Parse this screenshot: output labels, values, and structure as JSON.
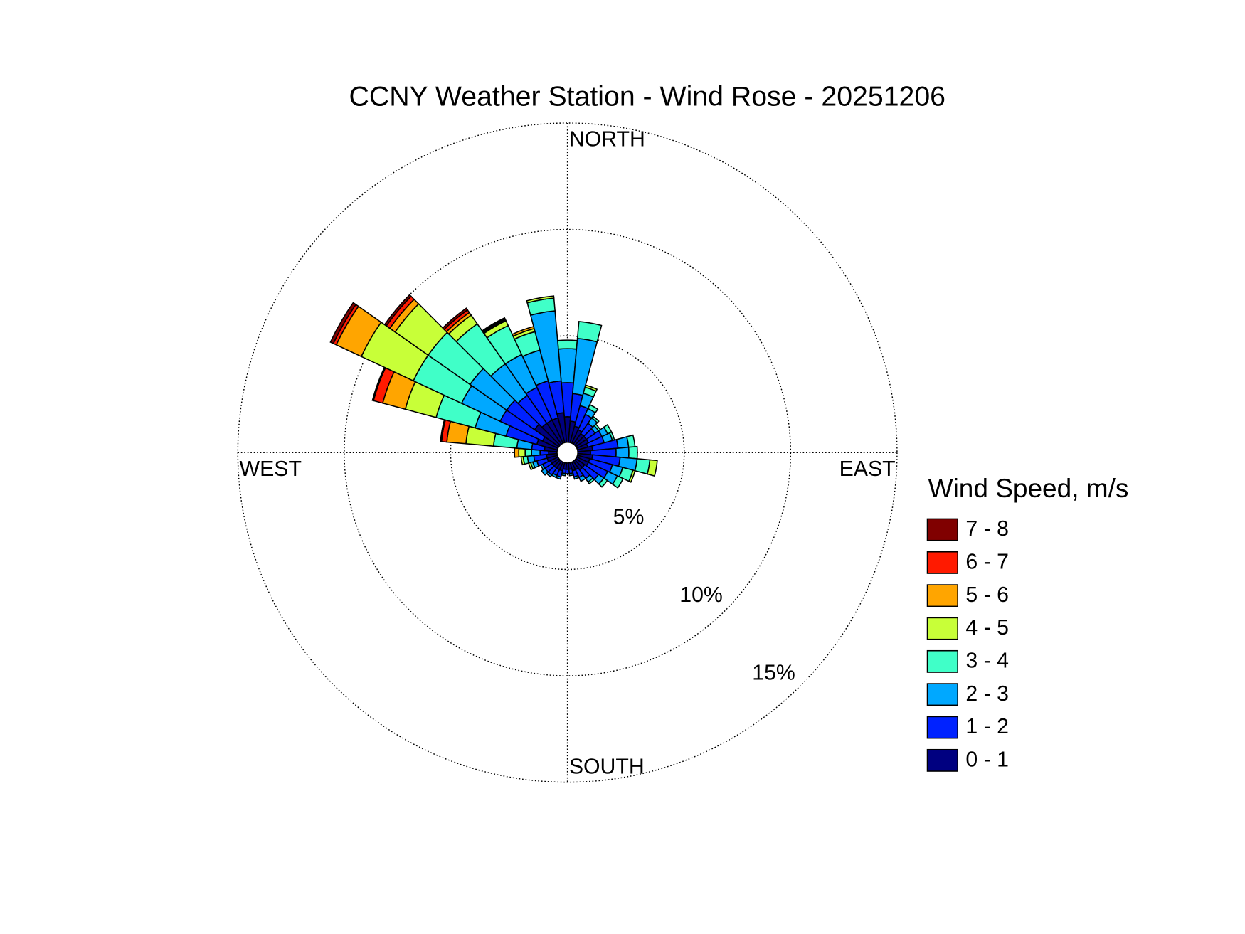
{
  "chart_data": {
    "type": "windrose",
    "title": "CCNY Weather Station - Wind Rose - 20251206",
    "legend_title": "Wind Speed, m/s",
    "compass_labels": [
      "NORTH",
      "EAST",
      "SOUTH",
      "WEST"
    ],
    "x": [
      0,
      10,
      20,
      30,
      40,
      50,
      60,
      70,
      80,
      90,
      100,
      110,
      120,
      130,
      140,
      150,
      160,
      170,
      180,
      190,
      200,
      210,
      220,
      230,
      240,
      250,
      260,
      270,
      280,
      290,
      300,
      310,
      320,
      330,
      340,
      350
    ],
    "rlim": [
      0,
      15
    ],
    "rticks": [
      {
        "value": 5,
        "label": "5%"
      },
      {
        "value": 10,
        "label": "10%"
      },
      {
        "value": 15,
        "label": "15%"
      }
    ],
    "grid": true,
    "legend": "right",
    "series": [
      {
        "name": "0 - 1",
        "color": "#000080",
        "values": [
          1.2,
          1.0,
          0.8,
          0.7,
          0.6,
          0.6,
          0.6,
          0.5,
          0.7,
          0.6,
          0.7,
          0.6,
          0.6,
          0.5,
          0.5,
          0.4,
          0.4,
          0.3,
          0.3,
          0.3,
          0.4,
          0.4,
          0.4,
          0.4,
          0.4,
          0.5,
          0.5,
          0.4,
          0.6,
          1.0,
          0.8,
          1.4,
          1.2,
          1.2,
          1.2,
          1.4
        ]
      },
      {
        "name": "1 - 2",
        "color": "#0022ff",
        "values": [
          1.6,
          1.3,
          1.0,
          0.8,
          0.6,
          0.5,
          0.7,
          0.8,
          1.2,
          1.2,
          1.3,
          1.1,
          1.0,
          0.8,
          0.5,
          0.4,
          0.3,
          0.2,
          0.2,
          0.2,
          0.3,
          0.3,
          0.4,
          0.4,
          0.4,
          0.5,
          0.6,
          0.4,
          0.6,
          1.5,
          2.2,
          1.6,
          1.6,
          1.7,
          1.8,
          1.5
        ]
      },
      {
        "name": "2 - 3",
        "color": "#00a8ff",
        "values": [
          1.6,
          2.6,
          0.6,
          0.3,
          0.3,
          0.2,
          0.3,
          0.4,
          0.5,
          0.6,
          0.8,
          0.5,
          0.5,
          0.3,
          0.2,
          0.2,
          0.1,
          0.1,
          0,
          0.1,
          0.1,
          0.1,
          0.1,
          0.2,
          0.1,
          0.2,
          0.3,
          0.4,
          0.7,
          1.5,
          2.0,
          2.1,
          1.8,
          1.7,
          1.5,
          3.3
        ]
      },
      {
        "name": "3 - 4",
        "color": "#40ffc8",
        "values": [
          0.4,
          0.8,
          0.3,
          0.2,
          0.1,
          0.1,
          0.2,
          0.1,
          0.3,
          0.4,
          0.6,
          0.5,
          0.3,
          0.2,
          0.1,
          0,
          0,
          0,
          0,
          0,
          0,
          0,
          0,
          0,
          0,
          0.1,
          0.2,
          0.3,
          1.1,
          1.9,
          2.5,
          2.4,
          2.3,
          1.5,
          0.9,
          0.6
        ]
      },
      {
        "name": "4 - 5",
        "color": "#c8ff38",
        "values": [
          0,
          0,
          0.1,
          0,
          0,
          0,
          0,
          0,
          0,
          0,
          0.35,
          0.1,
          0,
          0,
          0,
          0,
          0,
          0,
          0,
          0,
          0,
          0,
          0,
          0,
          0,
          0.1,
          0.1,
          0.3,
          1.3,
          1.5,
          2.7,
          1.9,
          0.5,
          0.25,
          0.15,
          0.1
        ]
      },
      {
        "name": "5 - 6",
        "color": "#ffa500",
        "values": [
          0,
          0,
          0,
          0,
          0,
          0,
          0,
          0,
          0,
          0,
          0,
          0,
          0,
          0,
          0,
          0,
          0,
          0,
          0,
          0,
          0,
          0,
          0,
          0,
          0,
          0,
          0,
          0.2,
          0.9,
          1.1,
          1.3,
          0.3,
          0.15,
          0.05,
          0.1,
          0
        ]
      },
      {
        "name": "6 - 7",
        "color": "#ff1a00",
        "values": [
          0,
          0,
          0,
          0,
          0,
          0,
          0,
          0,
          0,
          0,
          0,
          0,
          0,
          0,
          0,
          0,
          0,
          0,
          0,
          0,
          0,
          0,
          0,
          0,
          0,
          0,
          0,
          0,
          0.25,
          0.45,
          0.15,
          0.2,
          0.15,
          0.05,
          0,
          0
        ]
      },
      {
        "name": "7 - 8",
        "color": "#800000",
        "values": [
          0,
          0,
          0,
          0,
          0,
          0,
          0,
          0,
          0,
          0,
          0,
          0,
          0,
          0,
          0,
          0,
          0,
          0,
          0,
          0,
          0,
          0,
          0,
          0,
          0,
          0,
          0,
          0,
          0.05,
          0.05,
          0.15,
          0.1,
          0.1,
          0.05,
          0,
          0
        ]
      }
    ]
  }
}
